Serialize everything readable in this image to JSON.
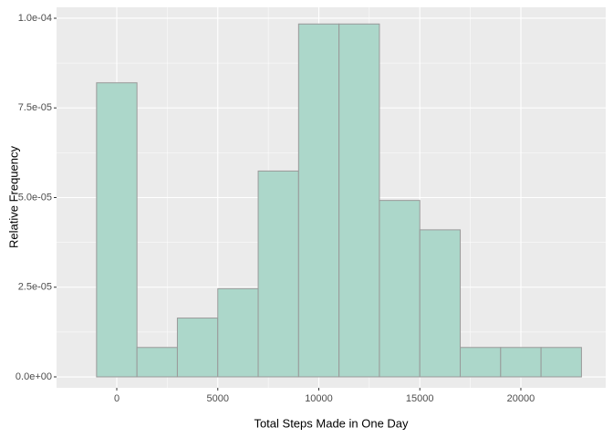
{
  "chart_data": {
    "type": "histogram",
    "x_label": "Total Steps Made in One Day",
    "y_label": "Relative Frequency",
    "bins": [
      -1000,
      1000,
      3000,
      5000,
      7000,
      9000,
      11000,
      13000,
      15000,
      17000,
      19000,
      21000,
      23000
    ],
    "values": [
      8.2e-05,
      8.2e-06,
      1.64e-05,
      2.46e-05,
      5.74e-05,
      9.84e-05,
      9.84e-05,
      4.92e-05,
      4.1e-05,
      8.2e-06,
      8.2e-06,
      8.2e-06
    ],
    "color": "#acd7ca",
    "edge_color": "#999999",
    "xlim": [
      -2980,
      24200
    ],
    "xticks": [
      0,
      5000,
      10000,
      15000,
      20000
    ],
    "ylim": [
      -3.05e-06,
      0.00010305
    ],
    "yticks": [
      {
        "value": 0,
        "label": "0.0e+00"
      },
      {
        "value": 2.5e-05,
        "label": "2.5e-05"
      },
      {
        "value": 5e-05,
        "label": "5.0e-05"
      },
      {
        "value": 7.5e-05,
        "label": "7.5e-05"
      },
      {
        "value": 0.0001,
        "label": "1.0e-04"
      }
    ],
    "grid": true
  }
}
